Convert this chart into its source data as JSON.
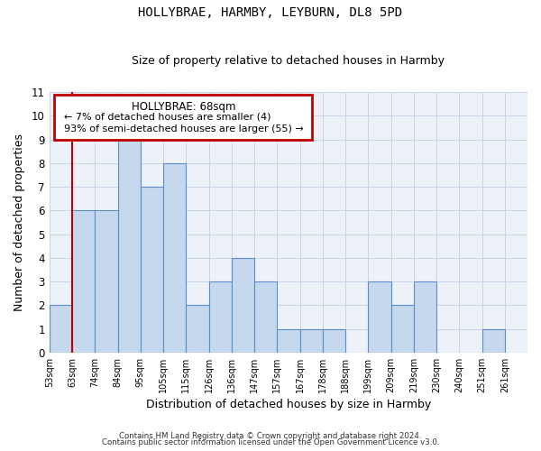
{
  "title": "HOLLYBRAE, HARMBY, LEYBURN, DL8 5PD",
  "subtitle": "Size of property relative to detached houses in Harmby",
  "xlabel": "Distribution of detached houses by size in Harmby",
  "ylabel": "Number of detached properties",
  "bins": [
    "53sqm",
    "63sqm",
    "74sqm",
    "84sqm",
    "95sqm",
    "105sqm",
    "115sqm",
    "126sqm",
    "136sqm",
    "147sqm",
    "157sqm",
    "167sqm",
    "178sqm",
    "188sqm",
    "199sqm",
    "209sqm",
    "219sqm",
    "230sqm",
    "240sqm",
    "251sqm",
    "261sqm"
  ],
  "counts": [
    2,
    6,
    6,
    9,
    7,
    8,
    2,
    3,
    4,
    3,
    1,
    1,
    1,
    0,
    3,
    2,
    3,
    0,
    0,
    1,
    0
  ],
  "ylim": [
    0,
    11
  ],
  "yticks": [
    0,
    1,
    2,
    3,
    4,
    5,
    6,
    7,
    8,
    9,
    10,
    11
  ],
  "bar_color": "#c5d8ee",
  "bar_edge_color": "#5b8dc8",
  "grid_color": "#c8d4e8",
  "annotation_box_color": "#c00000",
  "property_line_x": 1.0,
  "annotation_title": "HOLLYBRAE: 68sqm",
  "annotation_line1": "← 7% of detached houses are smaller (4)",
  "annotation_line2": "93% of semi-detached houses are larger (55) →",
  "footer1": "Contains HM Land Registry data © Crown copyright and database right 2024.",
  "footer2": "Contains public sector information licensed under the Open Government Licence v3.0.",
  "bg_color": "#ffffff",
  "plot_bg_color": "#edf2f9"
}
